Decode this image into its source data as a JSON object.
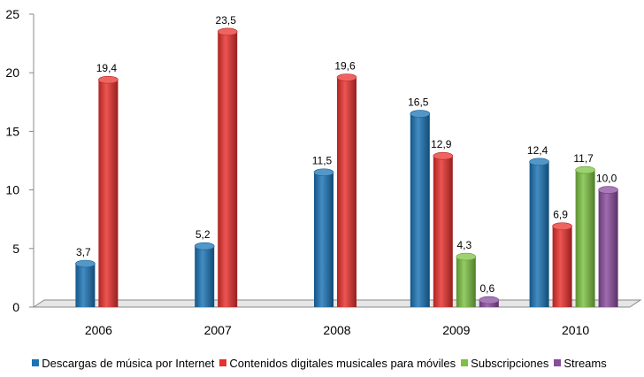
{
  "chart_data": {
    "type": "bar",
    "categories": [
      "2006",
      "2007",
      "2008",
      "2009",
      "2010"
    ],
    "series": [
      {
        "name": "Descargas de música por Internet",
        "color": "#1a73b5",
        "values": [
          3.7,
          5.2,
          11.5,
          16.5,
          12.4
        ],
        "labels": [
          "3,7",
          "5,2",
          "11,5",
          "16,5",
          "12,4"
        ]
      },
      {
        "name": "Contenidos digitales musicales para móviles",
        "color": "#e8302c",
        "values": [
          19.4,
          23.5,
          19.6,
          12.9,
          6.9
        ],
        "labels": [
          "19,4",
          "23,5",
          "19,6",
          "12,9",
          "6,9"
        ]
      },
      {
        "name": "Subscripciones",
        "color": "#7cc142",
        "values": [
          null,
          null,
          null,
          4.3,
          11.7
        ],
        "labels": [
          null,
          null,
          null,
          "4,3",
          "11,7"
        ]
      },
      {
        "name": "Streams",
        "color": "#8a4c9e",
        "values": [
          null,
          null,
          null,
          0.6,
          10.0
        ],
        "labels": [
          null,
          null,
          null,
          "0,6",
          "10,0"
        ]
      }
    ],
    "ylim": [
      0,
      25
    ],
    "yticks": [
      "0",
      "5",
      "10",
      "15",
      "20",
      "25"
    ],
    "grid": false,
    "legend": "bottom",
    "title": "",
    "xlabel": "",
    "ylabel": ""
  }
}
